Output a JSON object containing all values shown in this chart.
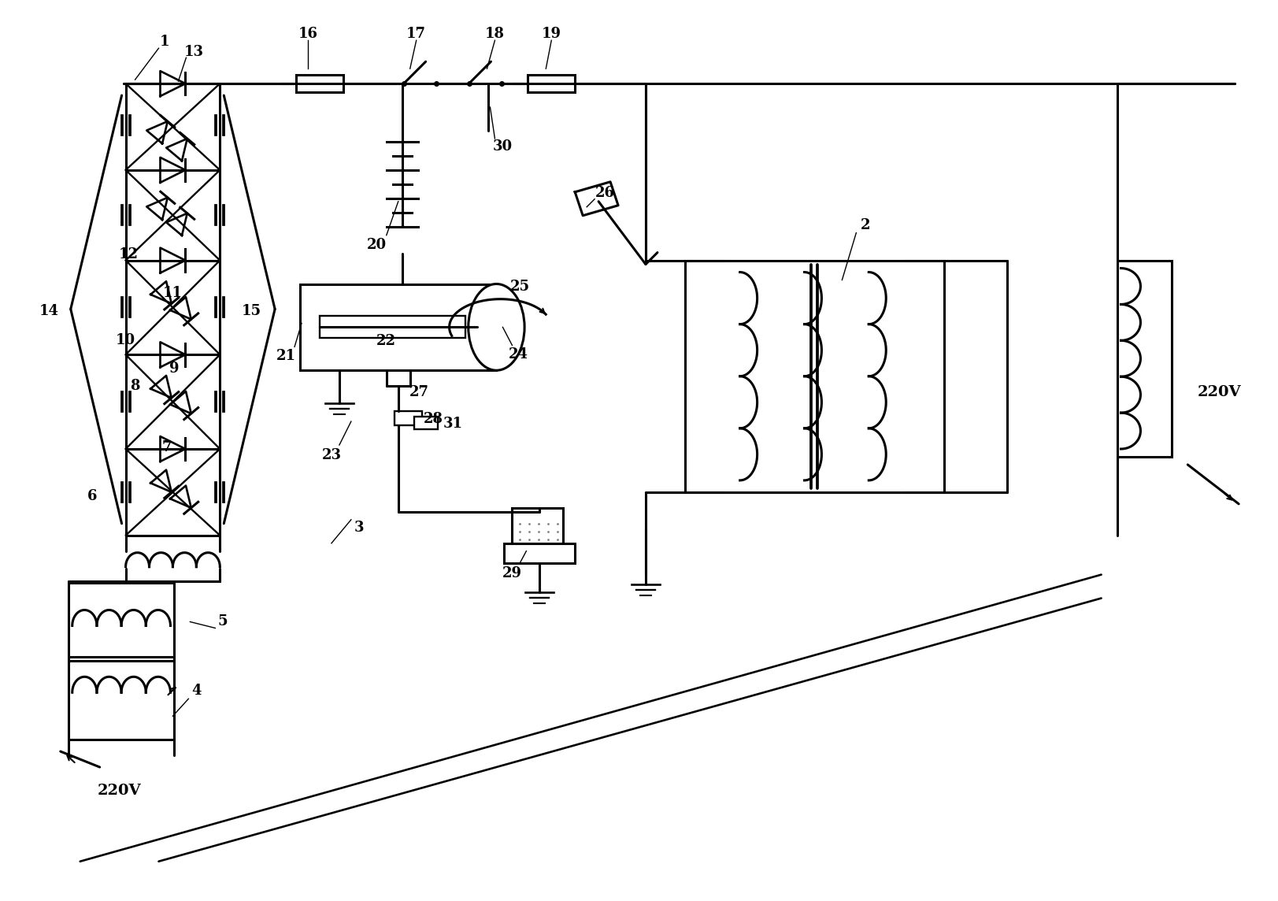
{
  "bg_color": "#ffffff",
  "lc": "#000000",
  "lw": 2.2
}
